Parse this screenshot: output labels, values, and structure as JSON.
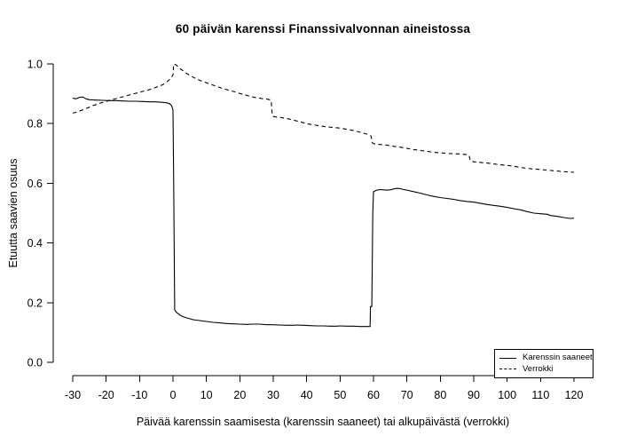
{
  "colors": {
    "line": "#000000",
    "background": "#ffffff",
    "text": "#000000"
  },
  "chart_data": {
    "type": "line",
    "title": "60 päivän karenssi Finanssivalvonnan aineistossa",
    "xlabel": "Päivää karenssin saamisesta (karenssin saaneet) tai alkupäivästä (verrokki)",
    "ylabel": "Etuutta saavien osuus",
    "xlim": [
      -30,
      120
    ],
    "ylim": [
      0.0,
      1.0
    ],
    "grid": false,
    "x_ticks": [
      -30,
      -20,
      -10,
      0,
      10,
      20,
      30,
      40,
      50,
      60,
      70,
      80,
      90,
      100,
      110,
      120
    ],
    "y_ticks": [
      0,
      0.2,
      0.4,
      0.6,
      0.8,
      1
    ],
    "y_tick_labels": [
      "0.0",
      "0.2",
      "0.4",
      "0.6",
      "0.8",
      "1.0"
    ],
    "legend": {
      "position": "bottom-right",
      "entries": [
        {
          "label": "Karenssin saaneet",
          "style": "solid"
        },
        {
          "label": "Verrokki",
          "style": "dashed"
        }
      ]
    },
    "series": [
      {
        "name": "Karenssin saaneet",
        "style": "solid",
        "color": "#000000",
        "points": [
          [
            -30,
            0.885
          ],
          [
            -29,
            0.883
          ],
          [
            -28,
            0.888
          ],
          [
            -27,
            0.889
          ],
          [
            -26,
            0.883
          ],
          [
            -25,
            0.88
          ],
          [
            -23,
            0.879
          ],
          [
            -21,
            0.878
          ],
          [
            -19,
            0.877
          ],
          [
            -17,
            0.877
          ],
          [
            -15,
            0.876
          ],
          [
            -13,
            0.875
          ],
          [
            -11,
            0.875
          ],
          [
            -9,
            0.874
          ],
          [
            -7,
            0.873
          ],
          [
            -5,
            0.873
          ],
          [
            -3,
            0.871
          ],
          [
            -2,
            0.87
          ],
          [
            -1,
            0.867
          ],
          [
            -0.4,
            0.86
          ],
          [
            0,
            0.845
          ],
          [
            0.2,
            0.6
          ],
          [
            0.5,
            0.175
          ],
          [
            1,
            0.168
          ],
          [
            2,
            0.159
          ],
          [
            3,
            0.153
          ],
          [
            4,
            0.149
          ],
          [
            5,
            0.146
          ],
          [
            6,
            0.143
          ],
          [
            8,
            0.14
          ],
          [
            10,
            0.137
          ],
          [
            12,
            0.134
          ],
          [
            14,
            0.132
          ],
          [
            16,
            0.13
          ],
          [
            18,
            0.129
          ],
          [
            20,
            0.128
          ],
          [
            22,
            0.127
          ],
          [
            24,
            0.128
          ],
          [
            26,
            0.128
          ],
          [
            28,
            0.126
          ],
          [
            30,
            0.126
          ],
          [
            32,
            0.125
          ],
          [
            34,
            0.124
          ],
          [
            36,
            0.124
          ],
          [
            37,
            0.125
          ],
          [
            39,
            0.124
          ],
          [
            41,
            0.123
          ],
          [
            43,
            0.122
          ],
          [
            45,
            0.122
          ],
          [
            47,
            0.121
          ],
          [
            49,
            0.121
          ],
          [
            50,
            0.122
          ],
          [
            52,
            0.121
          ],
          [
            54,
            0.121
          ],
          [
            56,
            0.12
          ],
          [
            58,
            0.12
          ],
          [
            59,
            0.12
          ],
          [
            59.1,
            0.187
          ],
          [
            59.5,
            0.187
          ],
          [
            59.8,
            0.5
          ],
          [
            60,
            0.572
          ],
          [
            61,
            0.577
          ],
          [
            62,
            0.579
          ],
          [
            63,
            0.578
          ],
          [
            64,
            0.577
          ],
          [
            65,
            0.578
          ],
          [
            66,
            0.581
          ],
          [
            67,
            0.583
          ],
          [
            68,
            0.582
          ],
          [
            69,
            0.579
          ],
          [
            70,
            0.577
          ],
          [
            72,
            0.572
          ],
          [
            74,
            0.567
          ],
          [
            76,
            0.561
          ],
          [
            78,
            0.556
          ],
          [
            80,
            0.552
          ],
          [
            82,
            0.549
          ],
          [
            84,
            0.546
          ],
          [
            86,
            0.542
          ],
          [
            88,
            0.539
          ],
          [
            90,
            0.537
          ],
          [
            92,
            0.533
          ],
          [
            94,
            0.529
          ],
          [
            96,
            0.526
          ],
          [
            98,
            0.523
          ],
          [
            100,
            0.519
          ],
          [
            102,
            0.515
          ],
          [
            104,
            0.511
          ],
          [
            106,
            0.505
          ],
          [
            108,
            0.5
          ],
          [
            110,
            0.498
          ],
          [
            112,
            0.496
          ],
          [
            113,
            0.492
          ],
          [
            115,
            0.489
          ],
          [
            117,
            0.485
          ],
          [
            119,
            0.482
          ],
          [
            120,
            0.483
          ]
        ]
      },
      {
        "name": "Verrokki",
        "style": "dashed",
        "color": "#000000",
        "points": [
          [
            -30,
            0.835
          ],
          [
            -29,
            0.838
          ],
          [
            -28,
            0.842
          ],
          [
            -27,
            0.846
          ],
          [
            -26,
            0.851
          ],
          [
            -25,
            0.855
          ],
          [
            -24,
            0.86
          ],
          [
            -23,
            0.864
          ],
          [
            -22,
            0.868
          ],
          [
            -21,
            0.871
          ],
          [
            -20,
            0.874
          ],
          [
            -19,
            0.878
          ],
          [
            -18,
            0.881
          ],
          [
            -17,
            0.884
          ],
          [
            -16,
            0.887
          ],
          [
            -15,
            0.89
          ],
          [
            -14,
            0.893
          ],
          [
            -13,
            0.896
          ],
          [
            -12,
            0.899
          ],
          [
            -11,
            0.902
          ],
          [
            -10,
            0.905
          ],
          [
            -9,
            0.908
          ],
          [
            -8,
            0.911
          ],
          [
            -7,
            0.914
          ],
          [
            -6,
            0.918
          ],
          [
            -5,
            0.922
          ],
          [
            -4,
            0.926
          ],
          [
            -3,
            0.931
          ],
          [
            -2,
            0.938
          ],
          [
            -1,
            0.948
          ],
          [
            -0.3,
            0.958
          ],
          [
            0,
            0.963
          ],
          [
            0.2,
            1.0
          ],
          [
            1,
            0.996
          ],
          [
            2,
            0.985
          ],
          [
            3,
            0.977
          ],
          [
            4,
            0.969
          ],
          [
            5,
            0.962
          ],
          [
            6,
            0.956
          ],
          [
            7,
            0.95
          ],
          [
            8,
            0.945
          ],
          [
            9,
            0.941
          ],
          [
            10,
            0.937
          ],
          [
            11,
            0.933
          ],
          [
            12,
            0.929
          ],
          [
            13,
            0.925
          ],
          [
            14,
            0.921
          ],
          [
            15,
            0.917
          ],
          [
            16,
            0.914
          ],
          [
            17,
            0.911
          ],
          [
            18,
            0.908
          ],
          [
            19,
            0.905
          ],
          [
            20,
            0.901
          ],
          [
            21,
            0.898
          ],
          [
            22,
            0.895
          ],
          [
            23,
            0.892
          ],
          [
            24,
            0.889
          ],
          [
            25,
            0.887
          ],
          [
            26,
            0.885
          ],
          [
            27,
            0.883
          ],
          [
            28,
            0.882
          ],
          [
            29,
            0.88
          ],
          [
            29.4,
            0.877
          ],
          [
            29.7,
            0.828
          ],
          [
            30,
            0.824
          ],
          [
            31,
            0.822
          ],
          [
            32,
            0.821
          ],
          [
            33,
            0.819
          ],
          [
            34,
            0.817
          ],
          [
            35,
            0.815
          ],
          [
            36,
            0.812
          ],
          [
            37,
            0.809
          ],
          [
            38,
            0.806
          ],
          [
            39,
            0.803
          ],
          [
            40,
            0.8
          ],
          [
            41,
            0.798
          ],
          [
            42,
            0.796
          ],
          [
            43,
            0.794
          ],
          [
            44,
            0.792
          ],
          [
            45,
            0.791
          ],
          [
            46,
            0.789
          ],
          [
            47,
            0.788
          ],
          [
            48,
            0.787
          ],
          [
            49,
            0.786
          ],
          [
            50,
            0.785
          ],
          [
            51,
            0.783
          ],
          [
            52,
            0.781
          ],
          [
            53,
            0.779
          ],
          [
            54,
            0.777
          ],
          [
            55,
            0.774
          ],
          [
            56,
            0.771
          ],
          [
            57,
            0.768
          ],
          [
            58,
            0.765
          ],
          [
            59,
            0.761
          ],
          [
            59.3,
            0.757
          ],
          [
            59.6,
            0.736
          ],
          [
            60,
            0.733
          ],
          [
            61,
            0.731
          ],
          [
            62,
            0.73
          ],
          [
            63,
            0.729
          ],
          [
            64,
            0.728
          ],
          [
            65,
            0.726
          ],
          [
            66,
            0.724
          ],
          [
            67,
            0.722
          ],
          [
            68,
            0.721
          ],
          [
            70,
            0.717
          ],
          [
            72,
            0.713
          ],
          [
            74,
            0.71
          ],
          [
            76,
            0.707
          ],
          [
            78,
            0.704
          ],
          [
            80,
            0.702
          ],
          [
            82,
            0.7
          ],
          [
            84,
            0.699
          ],
          [
            86,
            0.698
          ],
          [
            88,
            0.696
          ],
          [
            88.6,
            0.694
          ],
          [
            89,
            0.675
          ],
          [
            90,
            0.672
          ],
          [
            92,
            0.67
          ],
          [
            94,
            0.668
          ],
          [
            96,
            0.665
          ],
          [
            98,
            0.662
          ],
          [
            100,
            0.66
          ],
          [
            102,
            0.657
          ],
          [
            104,
            0.653
          ],
          [
            106,
            0.65
          ],
          [
            108,
            0.648
          ],
          [
            110,
            0.646
          ],
          [
            112,
            0.644
          ],
          [
            114,
            0.642
          ],
          [
            116,
            0.64
          ],
          [
            118,
            0.638
          ],
          [
            120,
            0.637
          ]
        ]
      }
    ]
  }
}
